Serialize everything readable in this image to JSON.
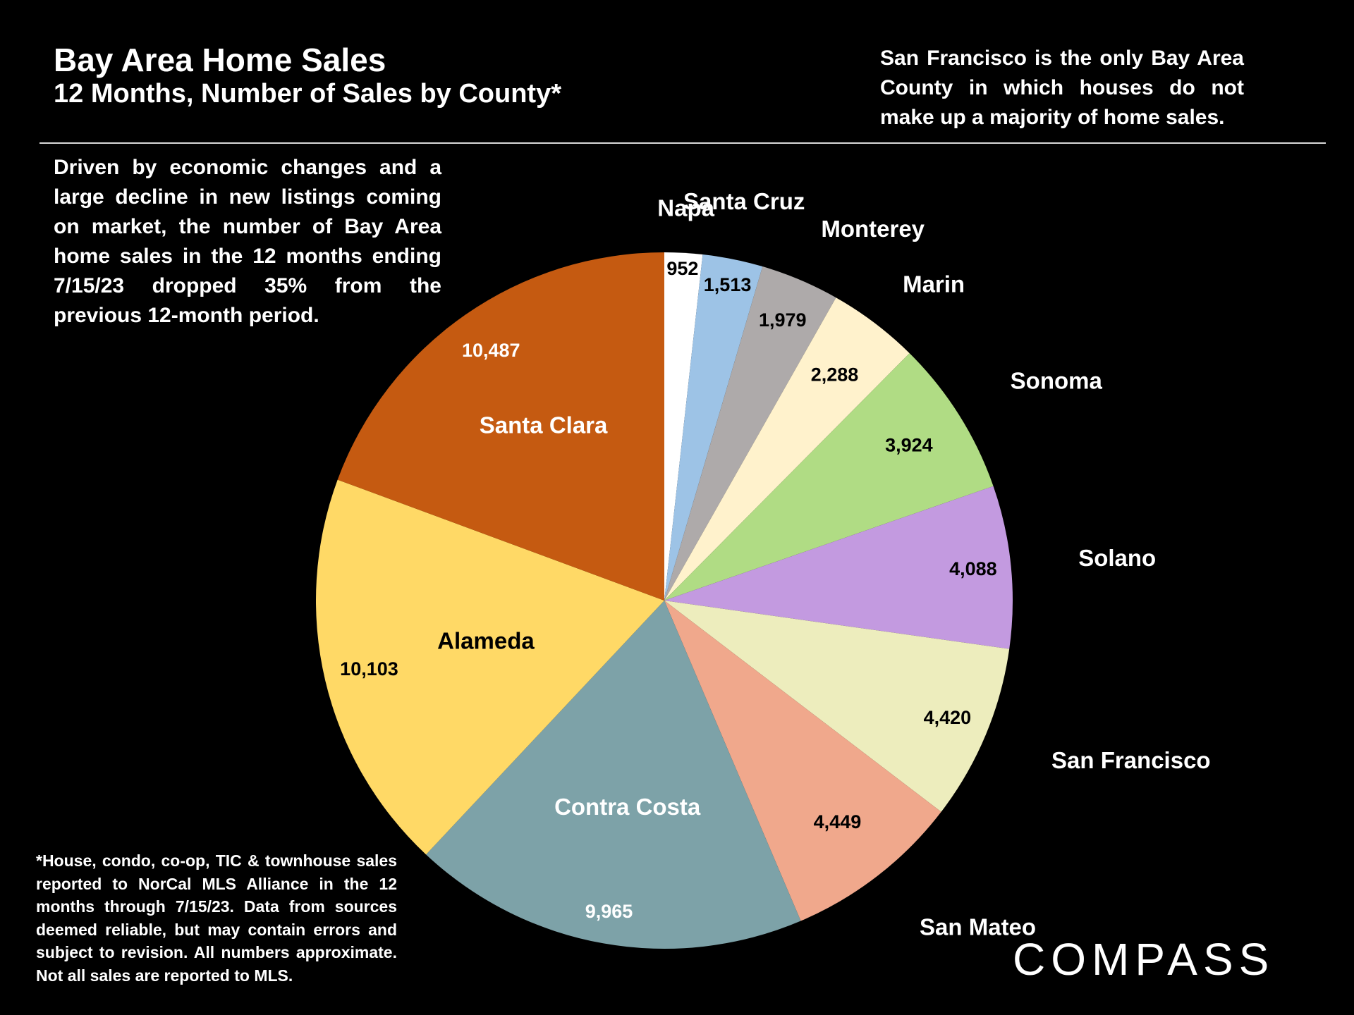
{
  "header": {
    "title": "Bay Area Home Sales",
    "subtitle": "12 Months, Number of Sales by County*"
  },
  "notes": {
    "right": "San Francisco is the only Bay Area County in which houses do not make up a majority of home sales.",
    "left": "Driven by economic changes and a large decline in new listings coming on market, the number of Bay Area home sales in the 12 months ending 7/15/23 dropped 35% from the previous 12-month period.",
    "footnote": "*House, condo, co-op, TIC & townhouse sales reported to NorCal MLS Alliance in the 12 months through 7/15/23. Data from sources deemed reliable, but may contain errors and subject to revision. All numbers approximate. Not all sales are reported to MLS."
  },
  "brand": {
    "logo_text": "COMPASS"
  },
  "chart_data": {
    "type": "pie",
    "title": "Bay Area Home Sales",
    "subtitle": "12 Months, Number of Sales by County*",
    "start": "12 o'clock, clockwise",
    "slices": [
      {
        "label": "Napa",
        "value": 952,
        "value_label": "952",
        "color": "#ffffff"
      },
      {
        "label": "Santa Cruz",
        "value": 1513,
        "value_label": "1,513",
        "color": "#9dc3e6"
      },
      {
        "label": "Monterey",
        "value": 1979,
        "value_label": "1,979",
        "color": "#aeaaaa"
      },
      {
        "label": "Marin",
        "value": 2288,
        "value_label": "2,288",
        "color": "#fff2cc"
      },
      {
        "label": "Sonoma",
        "value": 3924,
        "value_label": "3,924",
        "color": "#b0dc84"
      },
      {
        "label": "Solano",
        "value": 4088,
        "value_label": "4,088",
        "color": "#c39ae0"
      },
      {
        "label": "San Francisco",
        "value": 4420,
        "value_label": "4,420",
        "color": "#ededbd"
      },
      {
        "label": "San Mateo",
        "value": 4449,
        "value_label": "4,449",
        "color": "#f0a88c"
      },
      {
        "label": "Contra Costa",
        "value": 9965,
        "value_label": "9,965",
        "color": "#7da2a8"
      },
      {
        "label": "Alameda",
        "value": 10103,
        "value_label": "10,103",
        "color": "#ffd966"
      },
      {
        "label": "Santa Clara",
        "value": 10487,
        "value_label": "10,487",
        "color": "#c55a11"
      }
    ]
  }
}
